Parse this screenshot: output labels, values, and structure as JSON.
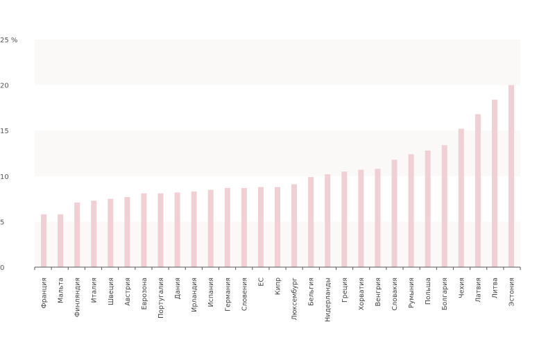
{
  "chart_data": {
    "type": "bar",
    "title": "",
    "xlabel": "",
    "ylabel": "",
    "ylim": [
      0,
      25
    ],
    "yticks": [
      {
        "value": 0,
        "label": "0"
      },
      {
        "value": 5,
        "label": "5"
      },
      {
        "value": 10,
        "label": "10"
      },
      {
        "value": 15,
        "label": "15"
      },
      {
        "value": 20,
        "label": "20"
      },
      {
        "value": 25,
        "label": "25 %"
      }
    ],
    "grid": "alternating horizontal bands",
    "categories": [
      "Франция",
      "Мальта",
      "Финляндия",
      "Италия",
      "Швеция",
      "Австрия",
      "Еврозона",
      "Португалия",
      "Дания",
      "Ирландия",
      "Испания",
      "Германия",
      "Словения",
      "ЕС",
      "Кипр",
      "Люксембург",
      "Бельгия",
      "Нидерланды",
      "Греция",
      "Хорватия",
      "Венгрия",
      "Словакия",
      "Румыния",
      "Польша",
      "Болгария",
      "Чехия",
      "Латвия",
      "Литва",
      "Эстония"
    ],
    "values": [
      5.8,
      5.8,
      7.1,
      7.3,
      7.5,
      7.7,
      8.1,
      8.1,
      8.2,
      8.3,
      8.5,
      8.7,
      8.7,
      8.8,
      8.8,
      9.1,
      9.9,
      10.2,
      10.5,
      10.7,
      10.8,
      11.8,
      12.4,
      12.8,
      13.4,
      15.2,
      16.8,
      18.4,
      20.0
    ],
    "colors": {
      "bar": "#f0d0d4",
      "band": "#faf9f7",
      "axis": "#555555"
    }
  }
}
